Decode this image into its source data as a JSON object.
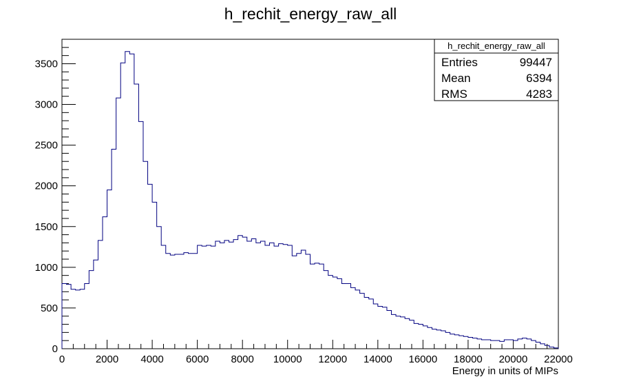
{
  "chart_data": {
    "type": "bar",
    "title": "h_rechit_energy_raw_all",
    "xlabel": "Energy in units of MIPs",
    "ylabel": "",
    "xlim": [
      0,
      22000
    ],
    "ylim": [
      0,
      3800
    ],
    "xticks": [
      "0",
      "2000",
      "4000",
      "6000",
      "8000",
      "10000",
      "12000",
      "14000",
      "16000",
      "18000",
      "20000",
      "22000"
    ],
    "yticks": [
      "0",
      "500",
      "1000",
      "1500",
      "2000",
      "2500",
      "3000",
      "3500"
    ],
    "grid": false,
    "line_color": "#000080",
    "bin_width": 200,
    "bin_start": 0,
    "values": [
      800,
      790,
      730,
      720,
      730,
      800,
      960,
      1090,
      1330,
      1620,
      1950,
      2450,
      3080,
      3510,
      3650,
      3620,
      3250,
      2790,
      2300,
      2020,
      1800,
      1500,
      1270,
      1170,
      1150,
      1160,
      1160,
      1180,
      1170,
      1170,
      1270,
      1260,
      1270,
      1260,
      1320,
      1300,
      1330,
      1310,
      1340,
      1390,
      1370,
      1320,
      1350,
      1300,
      1320,
      1270,
      1300,
      1260,
      1290,
      1280,
      1270,
      1140,
      1170,
      1210,
      1160,
      1040,
      1050,
      1040,
      960,
      900,
      880,
      860,
      800,
      800,
      750,
      720,
      680,
      630,
      610,
      550,
      520,
      510,
      470,
      420,
      400,
      390,
      370,
      350,
      310,
      300,
      280,
      260,
      240,
      230,
      220,
      200,
      180,
      170,
      160,
      150,
      140,
      130,
      120,
      110,
      110,
      100,
      100,
      90,
      110,
      110,
      100,
      120,
      130,
      120,
      100,
      80,
      60,
      40,
      20,
      10
    ],
    "stats": {
      "name": "h_rechit_energy_raw_all",
      "rows": [
        {
          "label": "Entries",
          "value": "99447"
        },
        {
          "label": "Mean",
          "value": "6394"
        },
        {
          "label": "RMS",
          "value": "4283"
        }
      ]
    }
  }
}
